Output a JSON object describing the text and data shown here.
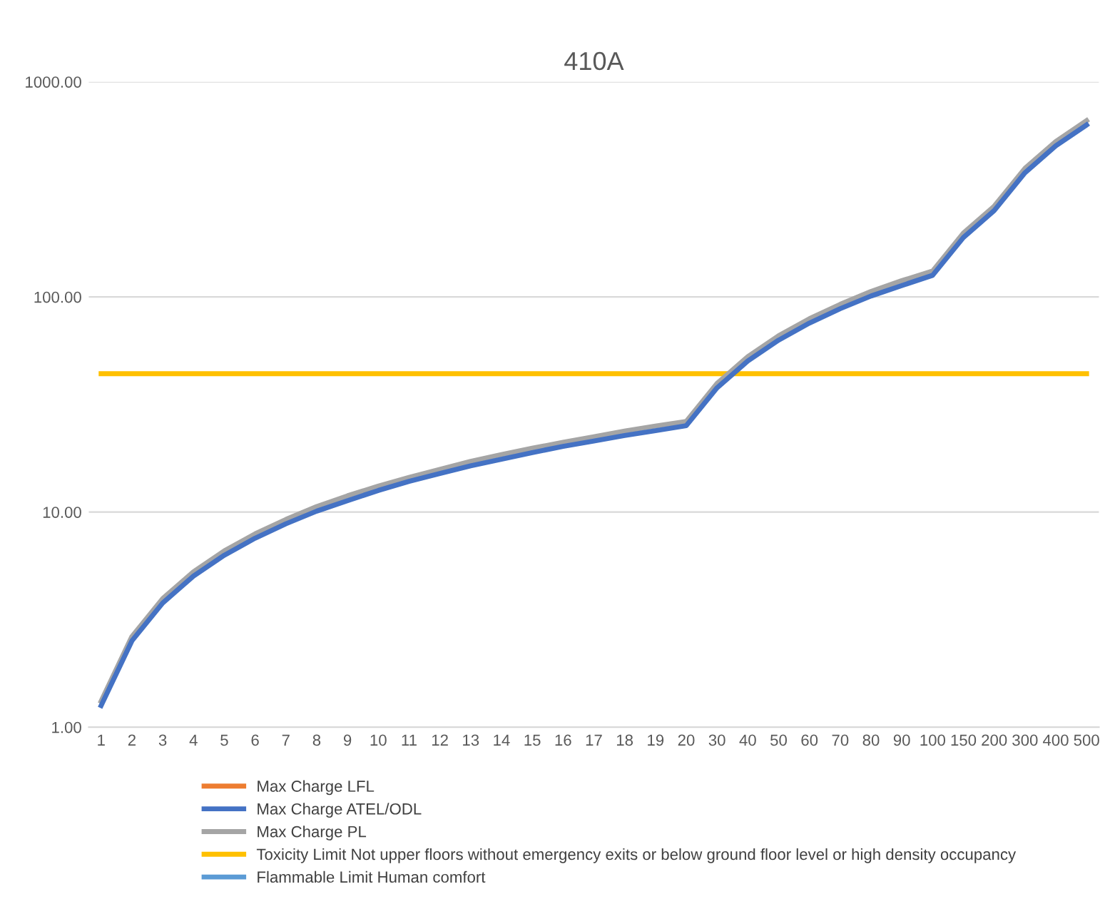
{
  "chart_data": {
    "type": "line",
    "title": "410A",
    "categories": [
      "1",
      "2",
      "3",
      "4",
      "5",
      "6",
      "7",
      "8",
      "9",
      "10",
      "11",
      "12",
      "13",
      "14",
      "15",
      "16",
      "17",
      "18",
      "19",
      "20",
      "30",
      "40",
      "50",
      "60",
      "70",
      "80",
      "90",
      "100",
      "150",
      "200",
      "300",
      "400",
      "500"
    ],
    "series": [
      {
        "name": "Max Charge LFL",
        "color": "#ed7d31",
        "values": [
          null,
          null,
          null,
          null,
          null,
          null,
          null,
          null,
          null,
          null,
          null,
          null,
          null,
          null,
          null,
          null,
          null,
          null,
          null,
          null,
          null,
          null,
          null,
          null,
          null,
          null,
          null,
          null,
          null,
          null,
          null,
          null,
          null
        ]
      },
      {
        "name": "Max Charge ATEL/ODL",
        "color": "#4472c4",
        "values": [
          1.26,
          2.52,
          3.78,
          5.04,
          6.3,
          7.56,
          8.82,
          10.1,
          11.3,
          12.6,
          13.9,
          15.1,
          16.4,
          17.6,
          18.9,
          20.2,
          21.4,
          22.7,
          23.9,
          25.2,
          37.8,
          50.4,
          63,
          75.6,
          88.2,
          101,
          113,
          126,
          189,
          252,
          378,
          504,
          630
        ]
      },
      {
        "name": "Max Charge PL",
        "color": "#a5a5a5",
        "values": [
          1.32,
          2.64,
          3.96,
          5.28,
          6.6,
          7.92,
          9.24,
          10.6,
          11.9,
          13.2,
          14.5,
          15.8,
          17.2,
          18.5,
          19.8,
          21.1,
          22.4,
          23.8,
          25.1,
          26.4,
          39.6,
          52.8,
          66,
          79.2,
          92.4,
          106,
          119,
          132,
          198,
          264,
          396,
          528,
          660
        ]
      },
      {
        "name": "Toxicity Limit Not upper floors without emergency exits or below ground floor level or high density occupancy",
        "color": "#ffc000",
        "values": [
          44,
          44,
          44,
          44,
          44,
          44,
          44,
          44,
          44,
          44,
          44,
          44,
          44,
          44,
          44,
          44,
          44,
          44,
          44,
          44,
          44,
          44,
          44,
          44,
          44,
          44,
          44,
          44,
          44,
          44,
          44,
          44,
          44
        ]
      },
      {
        "name": "Flammable Limit Human comfort",
        "color": "#5b9bd5",
        "values": [
          null,
          null,
          null,
          null,
          null,
          null,
          null,
          null,
          null,
          null,
          null,
          null,
          null,
          null,
          null,
          null,
          null,
          null,
          null,
          null,
          null,
          null,
          null,
          null,
          null,
          null,
          null,
          null,
          null,
          null,
          null,
          null,
          null
        ]
      }
    ],
    "log": "y",
    "ylim": [
      1,
      1000
    ],
    "yticks": [
      {
        "value": 1,
        "label": "1.00"
      },
      {
        "value": 10,
        "label": "10.00"
      },
      {
        "value": 100,
        "label": "100.00"
      },
      {
        "value": 1000,
        "label": "1000.00"
      }
    ],
    "grid": "y",
    "legend": "bottom",
    "marker": "none",
    "line_style": "solid"
  }
}
